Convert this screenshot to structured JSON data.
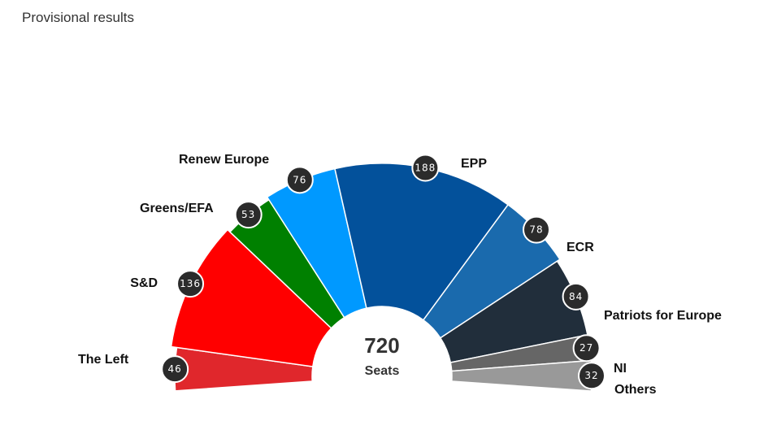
{
  "header": {
    "subtitle": "Provisional results"
  },
  "chart_data": {
    "type": "pie",
    "variant": "parliament-semicircle",
    "title": "",
    "subtitle": "Provisional results",
    "total": {
      "value": "720",
      "label": "Seats"
    },
    "series": [
      {
        "name": "The Left",
        "value": 46,
        "color": "#e0272c"
      },
      {
        "name": "S&D",
        "value": 136,
        "color": "#ff0000"
      },
      {
        "name": "Greens/EFA",
        "value": 53,
        "color": "#008000"
      },
      {
        "name": "Renew Europe",
        "value": 76,
        "color": "#0099ff"
      },
      {
        "name": "EPP",
        "value": 188,
        "color": "#03519b"
      },
      {
        "name": "ECR",
        "value": 78,
        "color": "#1a6aad"
      },
      {
        "name": "Patriots for Europe",
        "value": 84,
        "color": "#212e3b"
      },
      {
        "name": "NI",
        "value": 27,
        "color": "#666666"
      },
      {
        "name": "Others",
        "value": 32,
        "color": "#999999"
      }
    ]
  }
}
